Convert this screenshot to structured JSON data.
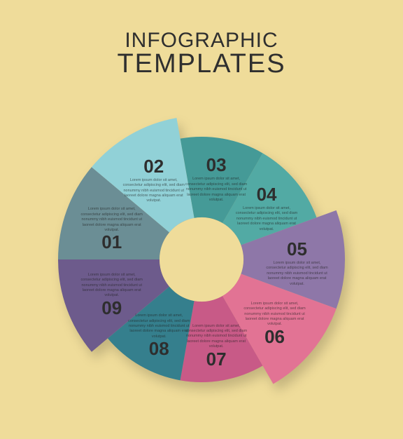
{
  "title": {
    "line1": "INFOGRAPHIC",
    "line2": "TEMPLATES"
  },
  "chart": {
    "type": "pie",
    "background_color": "#efdc9a",
    "center_color": "#efdc9a",
    "inner_radius": 60,
    "base_outer_radius": 175,
    "slice_count": 9,
    "start_angle_deg": -180,
    "title_color": "#2f2f2f",
    "number_color": "#2e2e2e",
    "lorem_color": "rgba(30,30,30,0.65)",
    "slices": [
      {
        "id": "01",
        "color": "#6b8e95",
        "pop_out": 30,
        "lorem_above": true
      },
      {
        "id": "02",
        "color": "#91d1d7",
        "pop_out": 30,
        "lorem_above": false
      },
      {
        "id": "03",
        "color": "#459a97",
        "pop_out": 0,
        "lorem_above": false
      },
      {
        "id": "04",
        "color": "#52aaa4",
        "pop_out": 0,
        "lorem_above": false
      },
      {
        "id": "05",
        "color": "#8e77a8",
        "pop_out": 30,
        "lorem_above": false
      },
      {
        "id": "06",
        "color": "#e27394",
        "pop_out": 30,
        "lorem_above": true
      },
      {
        "id": "07",
        "color": "#c85a87",
        "pop_out": 0,
        "lorem_above": true
      },
      {
        "id": "08",
        "color": "#357f8d",
        "pop_out": 0,
        "lorem_above": true
      },
      {
        "id": "09",
        "color": "#6d5b8c",
        "pop_out": 30,
        "lorem_above": true
      }
    ],
    "lorem": "Lorem ipsum dolor sit amet, consectetur adipiscing elit, sed diam nonummy nibh euismod tincidunt ut laoreet dolore magna aliquam erat volutpat."
  }
}
